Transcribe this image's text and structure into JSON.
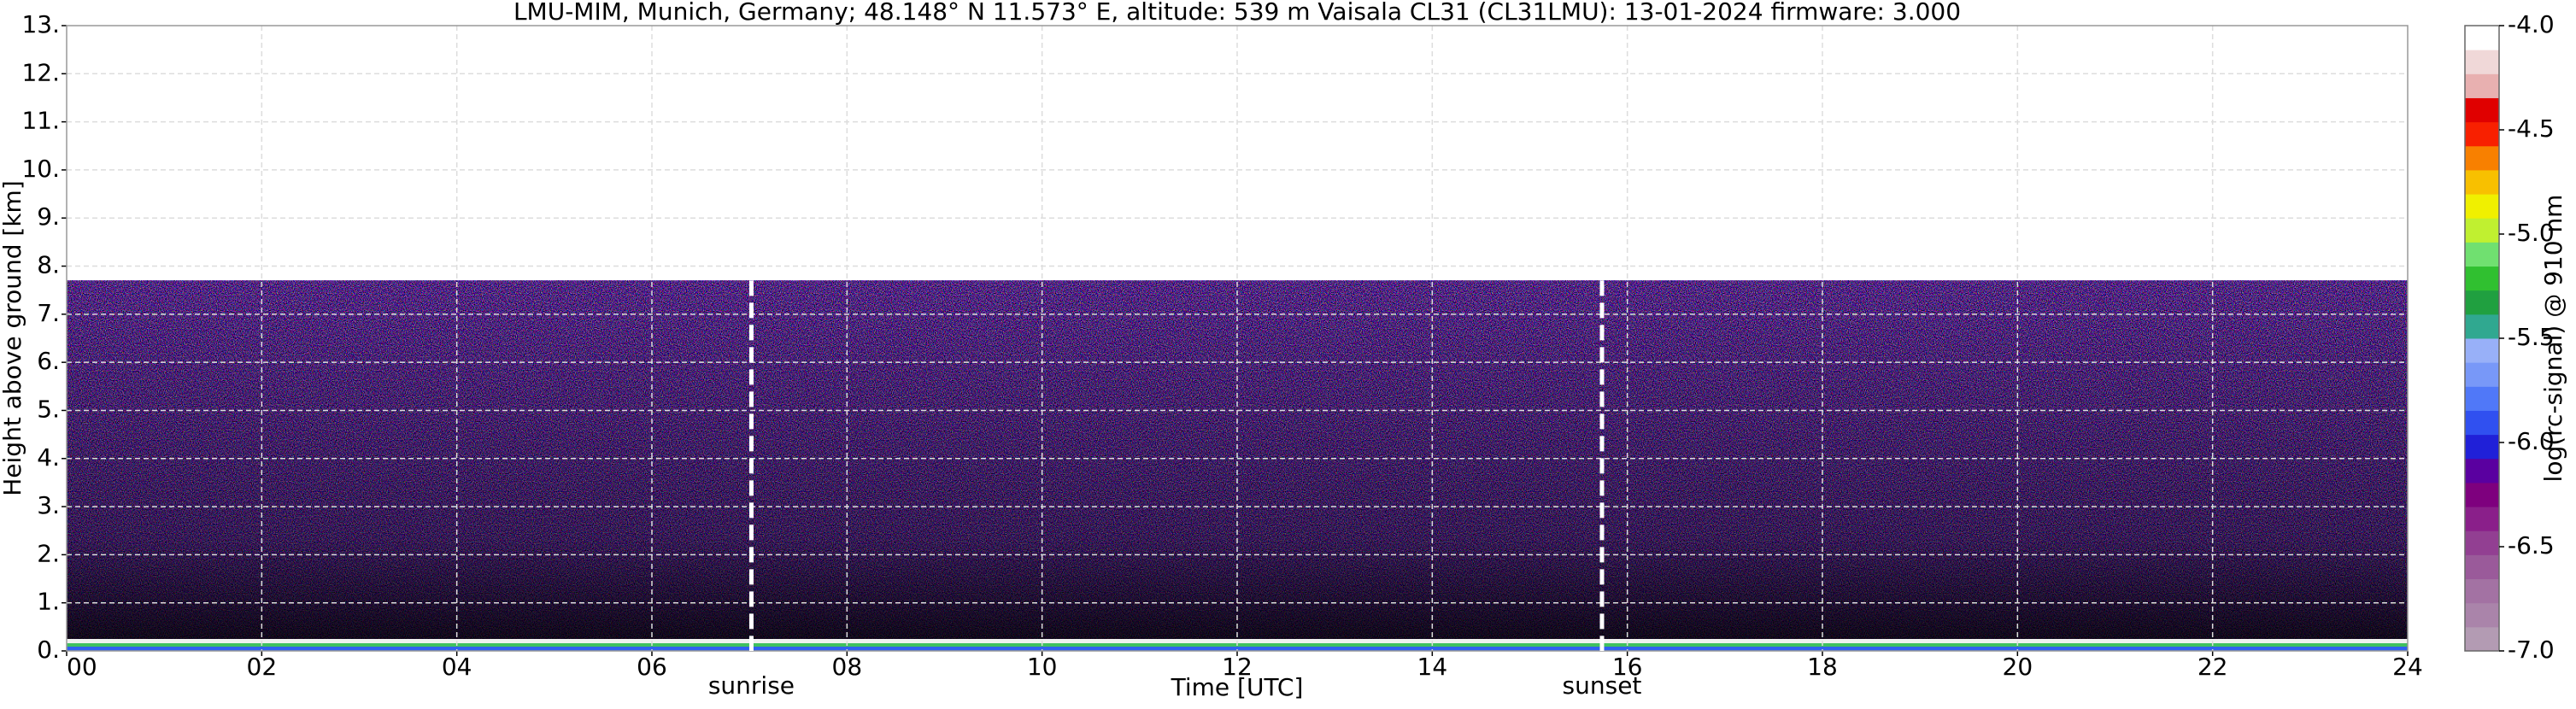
{
  "chart_data": {
    "type": "heatmap",
    "title": "LMU-MIM, Munich, Germany; 48.148° N 11.573° E, altitude: 539 m    Vaisala CL31 (CL31LMU): 13-01-2024    firmware: 3.000",
    "xlabel": "Time [UTC]",
    "ylabel": "Height above ground [km]",
    "xlim": [
      0,
      24
    ],
    "xticks": [
      {
        "value": 0,
        "label": "00"
      },
      {
        "value": 2,
        "label": "02"
      },
      {
        "value": 4,
        "label": "04"
      },
      {
        "value": 6,
        "label": "06"
      },
      {
        "value": 8,
        "label": "08"
      },
      {
        "value": 10,
        "label": "10"
      },
      {
        "value": 12,
        "label": "12"
      },
      {
        "value": 14,
        "label": "14"
      },
      {
        "value": 16,
        "label": "16"
      },
      {
        "value": 18,
        "label": "18"
      },
      {
        "value": 20,
        "label": "20"
      },
      {
        "value": 22,
        "label": "22"
      },
      24
    ],
    "ylim": [
      0,
      13
    ],
    "yticks": [
      {
        "value": 0,
        "label": "0."
      },
      {
        "value": 1,
        "label": "1."
      },
      {
        "value": 2,
        "label": "2."
      },
      {
        "value": 3,
        "label": "3."
      },
      {
        "value": 4,
        "label": "4."
      },
      {
        "value": 5,
        "label": "5."
      },
      {
        "value": 6,
        "label": "6."
      },
      {
        "value": 7,
        "label": "7."
      },
      {
        "value": 8,
        "label": "8."
      },
      {
        "value": 9,
        "label": "9."
      },
      {
        "value": 10,
        "label": "10."
      },
      {
        "value": 11,
        "label": "11."
      },
      {
        "value": 12,
        "label": "12."
      },
      {
        "value": 13,
        "label": "13."
      }
    ],
    "grid": true,
    "signal_top": 7.7,
    "annotations": [
      {
        "label": "sunrise",
        "x": 7.02
      },
      {
        "label": "sunset",
        "x": 15.74
      }
    ],
    "colorbar": {
      "label": "log(rc-signal) @ 910 nm",
      "lim": [
        -7,
        -4
      ],
      "ticks": [
        {
          "value": -7,
          "label": "-7.0"
        },
        {
          "value": -6.5,
          "label": "-6.5"
        },
        {
          "value": -6,
          "label": "-6.0"
        },
        {
          "value": -5.5,
          "label": "-5.5"
        },
        {
          "value": -5,
          "label": "-5.0"
        },
        {
          "value": -4.5,
          "label": "-4.5"
        },
        {
          "value": -4,
          "label": "-4.0"
        }
      ],
      "colors": [
        "#b39bb3",
        "#aa84aa",
        "#a372a3",
        "#9a5a9a",
        "#923f92",
        "#8a1f8a",
        "#7e007e",
        "#5a00a0",
        "#2020d8",
        "#3050f0",
        "#5078f8",
        "#7898f8",
        "#98b0f8",
        "#30a890",
        "#20a040",
        "#30c030",
        "#70e070",
        "#c0f030",
        "#f0f000",
        "#f8c000",
        "#f88000",
        "#f82000",
        "#e00000",
        "#e8b0b0",
        "#f0d8d8",
        "#ffffff"
      ]
    }
  }
}
